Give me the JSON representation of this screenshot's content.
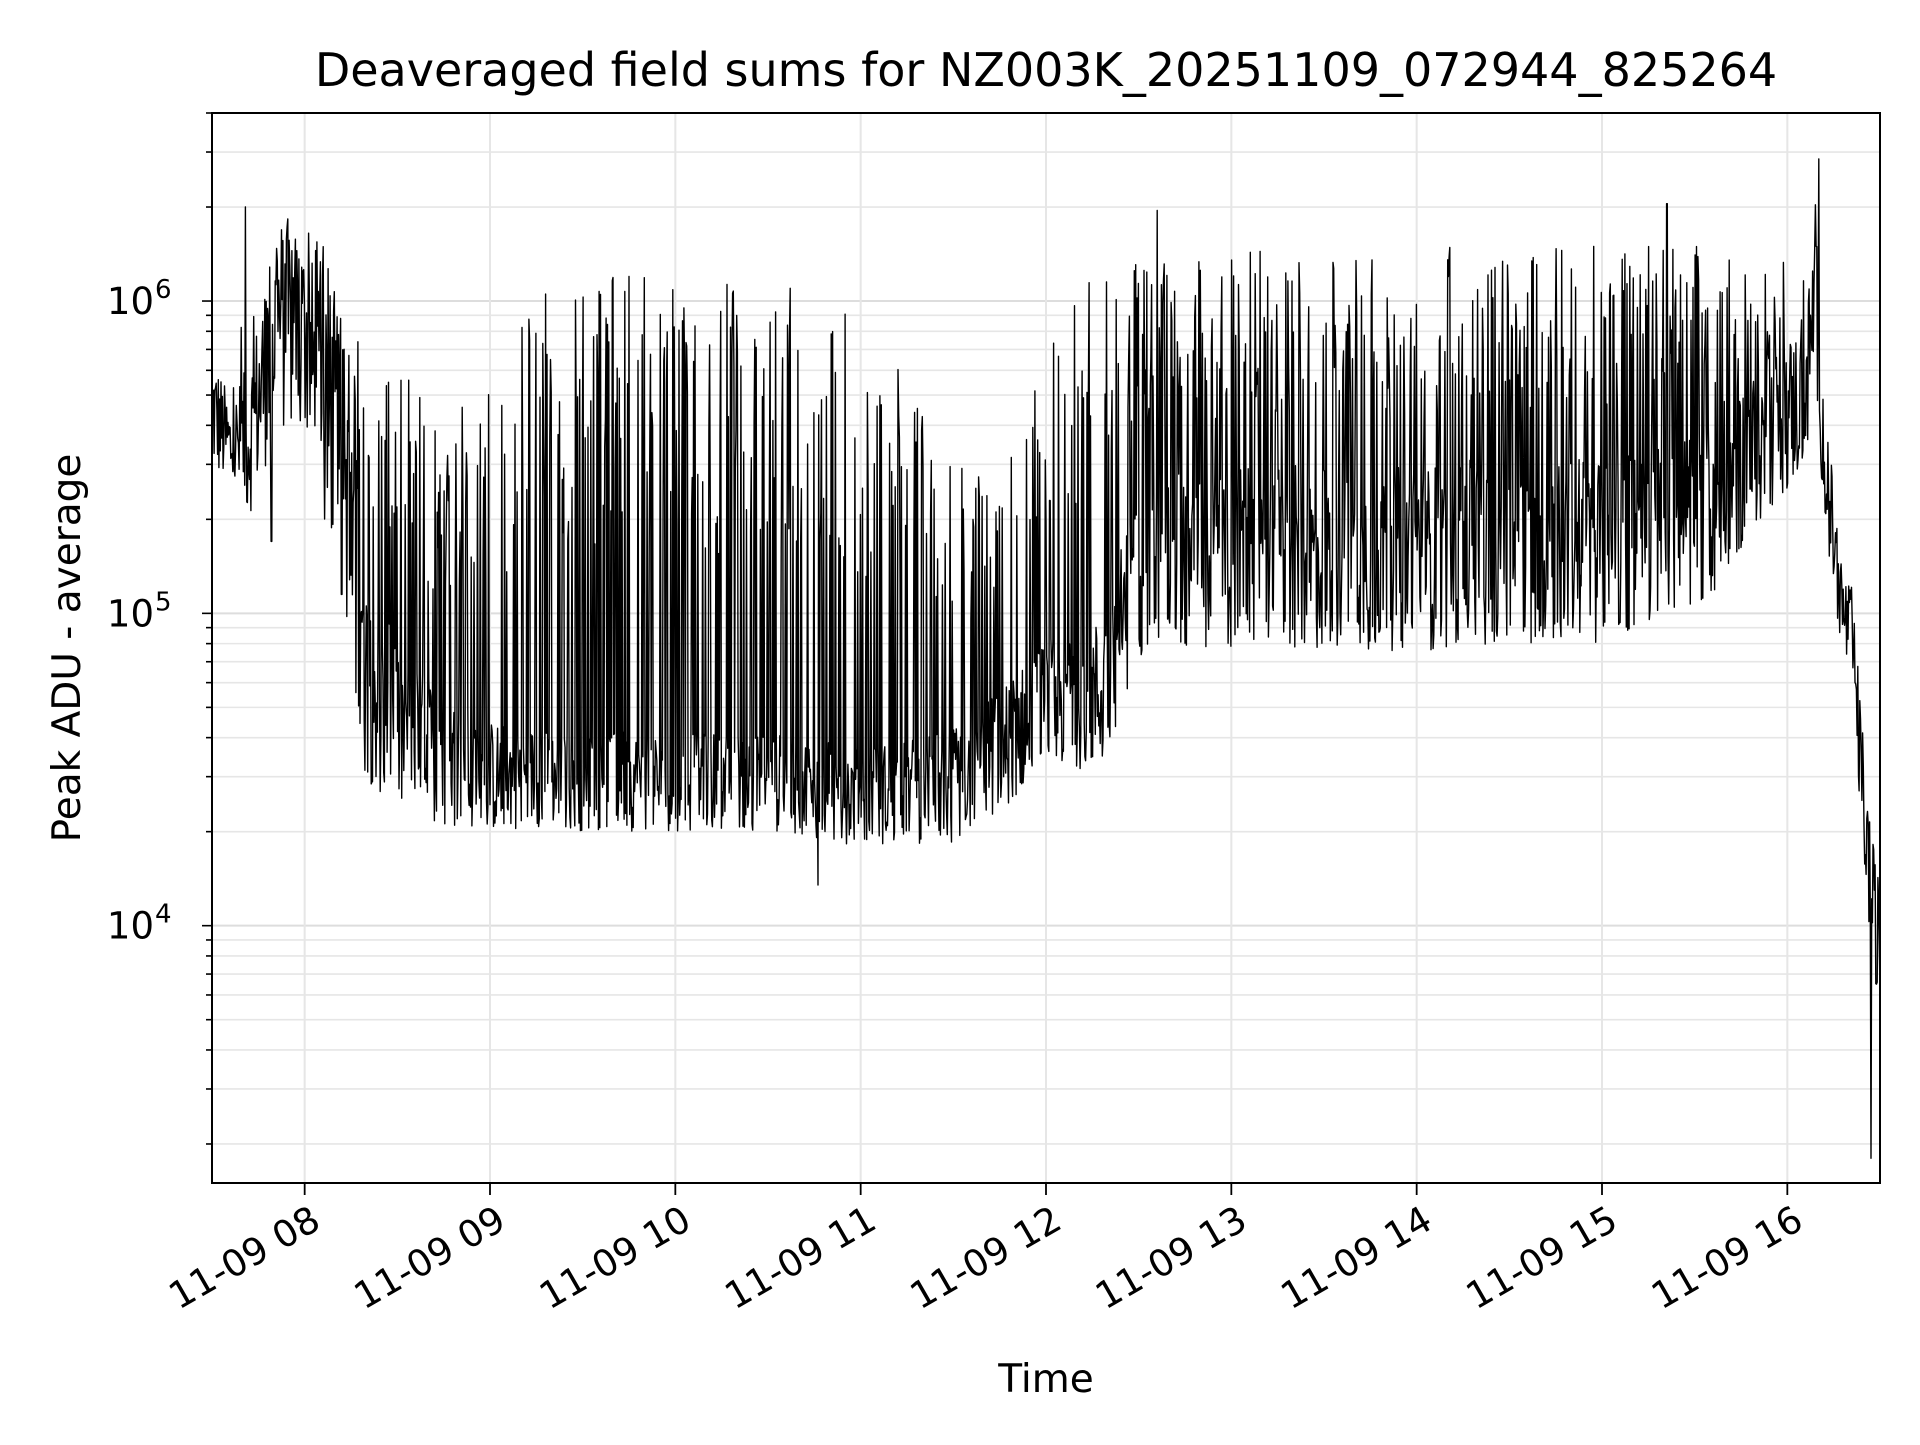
{
  "chart_data": {
    "type": "line",
    "title": "Deaveraged field sums for NZ003K_20251109_072944_825264",
    "xlabel": "Time",
    "ylabel": "Peak ADU - average",
    "yscale": "log",
    "xlim": [
      7.5,
      16.5
    ],
    "ylim": [
      1500,
      4000000
    ],
    "grid": true,
    "line_color": "#000000",
    "x_ticks": [
      {
        "value": 8,
        "label": "11-09 08"
      },
      {
        "value": 9,
        "label": "11-09 09"
      },
      {
        "value": 10,
        "label": "11-09 10"
      },
      {
        "value": 11,
        "label": "11-09 11"
      },
      {
        "value": 12,
        "label": "11-09 12"
      },
      {
        "value": 13,
        "label": "11-09 13"
      },
      {
        "value": 14,
        "label": "11-09 14"
      },
      {
        "value": 15,
        "label": "11-09 15"
      },
      {
        "value": 16,
        "label": "11-09 16"
      }
    ],
    "y_ticks": [
      {
        "value": 10000,
        "base": "10",
        "exp": "4"
      },
      {
        "value": 100000,
        "base": "10",
        "exp": "5"
      },
      {
        "value": 1000000,
        "base": "10",
        "exp": "6"
      }
    ],
    "series": [
      {
        "name": "field sums",
        "envelope": {
          "x": [
            7.5,
            7.6,
            7.7,
            7.85,
            8.0,
            8.1,
            8.2,
            8.3,
            8.5,
            8.75,
            9.0,
            9.25,
            9.5,
            10.0,
            10.5,
            11.0,
            11.5,
            11.75,
            12.0,
            12.3,
            12.5,
            12.7,
            13.0,
            13.5,
            14.0,
            14.5,
            15.0,
            15.5,
            15.9,
            16.1,
            16.15,
            16.2,
            16.3,
            16.35,
            16.4,
            16.45,
            16.5
          ],
          "base": [
            450000,
            340000,
            360000,
            850000,
            800000,
            420000,
            350000,
            70000,
            42000,
            34000,
            30000,
            30000,
            29000,
            29000,
            29000,
            26000,
            28000,
            36000,
            52000,
            55000,
            140000,
            150000,
            150000,
            150000,
            150000,
            160000,
            160000,
            190000,
            380000,
            500000,
            1100000,
            300000,
            100000,
            85000,
            30000,
            13000,
            8500
          ],
          "spread": [
            0.2,
            0.15,
            0.25,
            0.35,
            0.35,
            0.35,
            0.4,
            0.35,
            0.28,
            0.22,
            0.18,
            0.16,
            0.16,
            0.16,
            0.16,
            0.16,
            0.18,
            0.2,
            0.2,
            0.25,
            0.28,
            0.3,
            0.3,
            0.3,
            0.3,
            0.3,
            0.3,
            0.3,
            0.25,
            0.25,
            0.25,
            0.2,
            0.15,
            0.15,
            0.2,
            0.2,
            0.2
          ],
          "spike_rate": [
            0.0,
            0.0,
            0.05,
            0.15,
            0.15,
            0.2,
            0.3,
            0.3,
            0.3,
            0.3,
            0.3,
            0.3,
            0.32,
            0.34,
            0.34,
            0.3,
            0.3,
            0.28,
            0.28,
            0.3,
            0.3,
            0.3,
            0.3,
            0.3,
            0.3,
            0.3,
            0.3,
            0.3,
            0.2,
            0.1,
            0.1,
            0.0,
            0.0,
            0.0,
            0.0,
            0.0,
            0.0
          ],
          "spike_top": [
            600000,
            600000,
            1500000,
            1600000,
            1700000,
            1500000,
            1200000,
            800000,
            600000,
            500000,
            600000,
            1100000,
            1200000,
            1200000,
            1200000,
            1000000,
            300000,
            300000,
            700000,
            1400000,
            1400000,
            1400000,
            1500000,
            1400000,
            1500000,
            1500000,
            1500000,
            1500000,
            1300000,
            1500000,
            2500000,
            500000,
            100000,
            100000,
            30000,
            20000,
            15000
          ],
          "dips": [
            {
              "x": 7.82,
              "y": 170000
            },
            {
              "x": 8.2,
              "y": 115000
            },
            {
              "x": 10.77,
              "y": 13500
            },
            {
              "x": 16.45,
              "y": 1800
            },
            {
              "x": 16.48,
              "y": 6500
            }
          ],
          "peaks": [
            {
              "x": 7.68,
              "y": 2000000
            },
            {
              "x": 12.6,
              "y": 1950000
            },
            {
              "x": 15.35,
              "y": 2050000
            },
            {
              "x": 16.17,
              "y": 2850000
            }
          ]
        }
      }
    ]
  }
}
